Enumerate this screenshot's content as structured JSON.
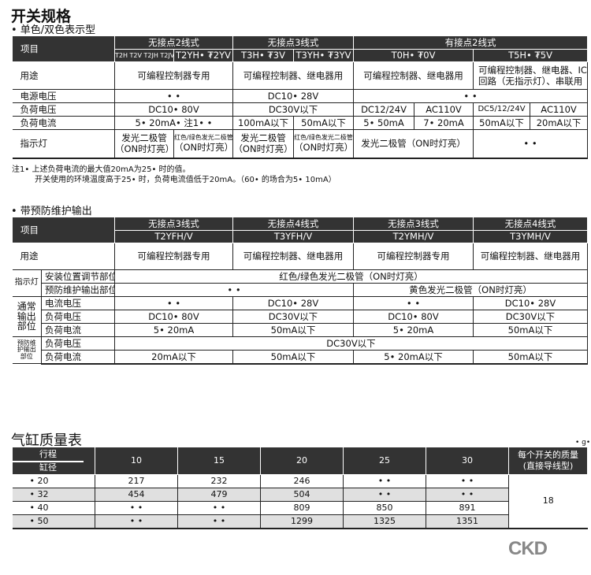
{
  "sec1": {
    "title": "开关规格",
    "subtitle": "• 单色/双色表示型",
    "head": {
      "item": "项目",
      "g1": "无接点2线式",
      "g2": "无接点3线式",
      "g3": "有接点2线式",
      "m1": "T2H T2V T2JH T2JV",
      "m2": "T2YH• ₮2YV",
      "m3": "T3H• ₮3V",
      "m4": "T3YH• ₮3YV",
      "m5": "T0H• ₮0V",
      "m6": "T5H• ₮5V"
    },
    "rows": {
      "use": {
        "label": "用途",
        "c1": "可编程控制器专用",
        "c2": "可编程控制器、继电器用",
        "c3": "可编程控制器、继电器用",
        "c4": "可编程控制器、继电器、IC回路（无指示灯）、串联用"
      },
      "power": {
        "label": "电源电压",
        "c1": "• •",
        "c2": "DC10• 28V",
        "c3": "• •"
      },
      "loadv": {
        "label": "负荷电压",
        "c1": "DC10• 80V",
        "c2": "DC30V以下",
        "c3": "DC12/24V",
        "c4": "AC110V",
        "c5": "DC5/12/24V",
        "c6": "AC110V"
      },
      "loadi": {
        "label": "负荷电流",
        "c1": "5• 20mA• 注1• •",
        "c2": "100mA以下",
        "c3": "50mA以下",
        "c4": "5• 50mA",
        "c5": "7• 20mA",
        "c6": "50mA以下",
        "c7": "20mA以下"
      },
      "lamp": {
        "label": "指示灯",
        "c1a": "发光二极管",
        "c1b": "（ON时灯亮）",
        "c2a": "红色/绿色发光二极管",
        "c2b": "（ON时灯亮）",
        "c3a": "发光二极管",
        "c3b": "（ON时灯亮）",
        "c4a": "红色/绿色发光二极管",
        "c4b": "（ON时灯亮）",
        "c5": "发光二极管（ON时灯亮）",
        "c6": "• •"
      }
    },
    "note1": "注1• 上述负荷电流的最大值20mA为25• 时的值。",
    "note2": "开关使用的环境温度高于25• 时，负荷电流值低于20mA。（60• 的场合为5• 10mA）"
  },
  "sec2": {
    "subtitle": "• 带预防维护输出",
    "head": {
      "item": "项目",
      "g1": "无接点3线式",
      "g2": "无接点4线式",
      "g3": "无接点3线式",
      "g4": "无接点4线式",
      "m1": "T2YFH/V",
      "m2": "T3YFH/V",
      "m3": "T2YMH/V",
      "m4": "T3YMH/V"
    },
    "use": {
      "label": "用途",
      "c1": "可编程控制器专用",
      "c2": "可编程控制器、继电器用",
      "c3": "可编程控制器专用",
      "c4": "可编程控制器、继电器用"
    },
    "grp1": "指示灯",
    "grp2": "通常输出部位",
    "grp3": "预防维护输出部位",
    "lamp1": {
      "label": "安装位置调节部位",
      "c1": "红色/绿色发光二极管（ON时灯亮）"
    },
    "lamp2": {
      "label": "预防维护输出部位",
      "c1": "• •",
      "c2": "黄色发光二极管（ON时灯亮）"
    },
    "o1": {
      "label": "电流电压",
      "c1": "• •",
      "c2": "DC10• 28V",
      "c3": "• •",
      "c4": "DC10• 28V"
    },
    "o2": {
      "label": "负荷电压",
      "c1": "DC10• 80V",
      "c2": "DC30V以下",
      "c3": "DC10• 80V",
      "c4": "DC30V以下"
    },
    "o3": {
      "label": "负荷电流",
      "c1": "5• 20mA",
      "c2": "50mA以下",
      "c3": "5• 20mA",
      "c4": "50mA以下"
    },
    "p1": {
      "label": "负荷电压",
      "c1": "DC30V以下"
    },
    "p2": {
      "label": "负荷电流",
      "c1": "20mA以下",
      "c2": "50mA以下",
      "c3": "5• 20mA以下",
      "c4": "50mA以下"
    }
  },
  "sec3": {
    "title": "气缸质量表",
    "unit": "• g•",
    "head": {
      "stroke": "行程",
      "bore": "缸径",
      "cols": [
        "10",
        "15",
        "20",
        "25",
        "30"
      ],
      "sw1": "每个开关的质量",
      "sw2": "(直接导线型)"
    },
    "rows": [
      {
        "bore": "• 20",
        "v": [
          "217",
          "232",
          "246",
          "• •",
          "• •"
        ]
      },
      {
        "bore": "• 32",
        "v": [
          "454",
          "479",
          "504",
          "• •",
          "• •"
        ]
      },
      {
        "bore": "• 40",
        "v": [
          "• •",
          "• •",
          "809",
          "850",
          "891"
        ]
      },
      {
        "bore": "• 50",
        "v": [
          "• •",
          "• •",
          "1299",
          "1325",
          "1351"
        ]
      }
    ],
    "switch_mass": "18"
  },
  "logo": "CKD"
}
